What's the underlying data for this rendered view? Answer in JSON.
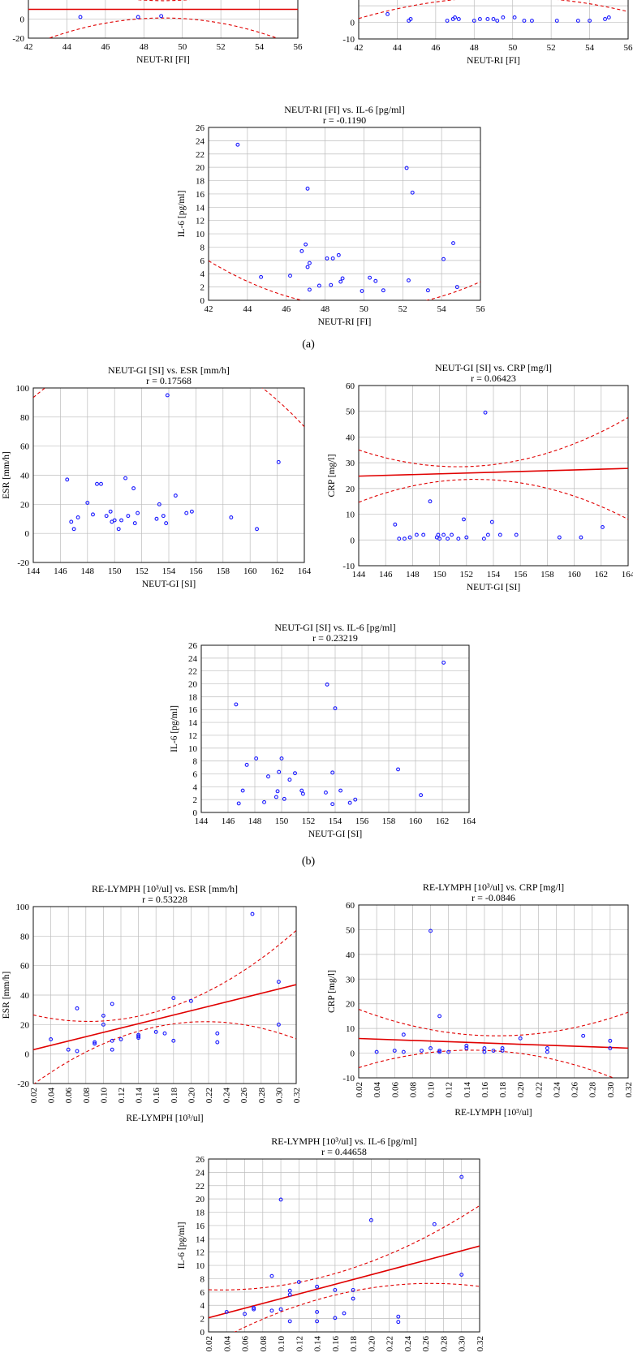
{
  "panel_labels": [
    "(a)",
    "(b)"
  ],
  "chart_data": [
    {
      "id": "a1",
      "type": "scatter",
      "title": "",
      "r_label": "",
      "xlabel": "NEUT-RI [FI]",
      "ylabel": "",
      "xlim": [
        42,
        56
      ],
      "ylim": [
        -20,
        100
      ],
      "xticks": [
        "42",
        "44",
        "46",
        "48",
        "50",
        "52",
        "54",
        "56"
      ],
      "yticks": [
        "-20",
        "0"
      ],
      "points": [
        [
          44.7,
          2
        ],
        [
          47.7,
          2
        ],
        [
          48.9,
          3
        ]
      ],
      "fit": {
        "intercept": 10,
        "slope": 0
      },
      "band": {
        "center": 49,
        "c0": 9,
        "k": 0.6
      }
    },
    {
      "id": "a2",
      "type": "scatter",
      "title": "",
      "r_label": "",
      "xlabel": "NEUT-RI [FI]",
      "ylabel": "",
      "xlim": [
        42,
        56
      ],
      "ylim": [
        -10,
        60
      ],
      "xticks": [
        "42",
        "44",
        "46",
        "48",
        "50",
        "52",
        "54",
        "56"
      ],
      "yticks": [
        "-10",
        "0"
      ],
      "points": [
        [
          43.5,
          5
        ],
        [
          44.6,
          1
        ],
        [
          44.7,
          2
        ],
        [
          46.6,
          1
        ],
        [
          46.9,
          2
        ],
        [
          47.0,
          3
        ],
        [
          47.2,
          2
        ],
        [
          48.0,
          1
        ],
        [
          48.3,
          2
        ],
        [
          48.7,
          2
        ],
        [
          49.0,
          2
        ],
        [
          49.2,
          1
        ],
        [
          49.5,
          3
        ],
        [
          50.1,
          3
        ],
        [
          50.6,
          1
        ],
        [
          51.0,
          1
        ],
        [
          52.3,
          1
        ],
        [
          53.4,
          1
        ],
        [
          54.0,
          1
        ],
        [
          54.8,
          2
        ],
        [
          55.0,
          3
        ]
      ],
      "fit": {
        "intercept": 2,
        "slope": 0.3
      },
      "band": {
        "center": 49,
        "c0": 1.5,
        "k": 0.22
      }
    },
    {
      "id": "a3",
      "type": "scatter",
      "title": "NEUT-RI [FI] vs. IL-6 [pg/ml]",
      "r_label": "r = -0.1190",
      "xlabel": "NEUT-RI [FI]",
      "ylabel": "IL-6 [pg/ml]",
      "xlim": [
        42,
        56
      ],
      "ylim": [
        0,
        26
      ],
      "xticks": [
        "42",
        "44",
        "46",
        "48",
        "50",
        "52",
        "54",
        "56"
      ],
      "yticks": [
        "0",
        "2",
        "4",
        "6",
        "8",
        "10",
        "12",
        "14",
        "16",
        "18",
        "20",
        "22",
        "24",
        "26"
      ],
      "points": [
        [
          43.5,
          23.4
        ],
        [
          44.7,
          3.5
        ],
        [
          46.2,
          3.7
        ],
        [
          46.8,
          7.4
        ],
        [
          47.0,
          8.4
        ],
        [
          47.1,
          16.8
        ],
        [
          47.1,
          5.0
        ],
        [
          47.2,
          5.6
        ],
        [
          47.2,
          1.6
        ],
        [
          47.7,
          2.2
        ],
        [
          48.1,
          6.3
        ],
        [
          48.3,
          2.3
        ],
        [
          48.4,
          6.3
        ],
        [
          48.7,
          6.8
        ],
        [
          48.8,
          2.8
        ],
        [
          48.9,
          3.3
        ],
        [
          49.9,
          1.4
        ],
        [
          50.3,
          3.4
        ],
        [
          50.6,
          2.9
        ],
        [
          51.0,
          1.5
        ],
        [
          52.2,
          19.9
        ],
        [
          52.3,
          3.0
        ],
        [
          52.5,
          16.2
        ],
        [
          53.3,
          1.5
        ],
        [
          54.1,
          6.2
        ],
        [
          54.6,
          8.6
        ],
        [
          54.8,
          2.0
        ]
      ],
      "fit": {
        "intercept": 7.8,
        "slope": -0.225
      },
      "band": {
        "center": 49,
        "c0": 2.2,
        "k": 0.11
      }
    },
    {
      "id": "b1",
      "type": "scatter",
      "title": "NEUT-GI [SI] vs. ESR [mm/h]",
      "r_label": "r = 0.17568",
      "xlabel": "NEUT-GI [SI]",
      "ylabel": "ESR [mm/h]",
      "xlim": [
        144,
        164
      ],
      "ylim": [
        -20,
        100
      ],
      "xticks": [
        "144",
        "146",
        "148",
        "150",
        "152",
        "154",
        "156",
        "158",
        "160",
        "162",
        "164"
      ],
      "yticks": [
        "-20",
        "0",
        "20",
        "40",
        "60",
        "80",
        "100"
      ],
      "points": [
        [
          146.5,
          37
        ],
        [
          146.8,
          8
        ],
        [
          147.0,
          3
        ],
        [
          147.3,
          11
        ],
        [
          148.0,
          21
        ],
        [
          148.4,
          13
        ],
        [
          148.7,
          34
        ],
        [
          149.0,
          34
        ],
        [
          149.4,
          12
        ],
        [
          149.7,
          15
        ],
        [
          149.8,
          8
        ],
        [
          150.0,
          9
        ],
        [
          150.3,
          3
        ],
        [
          150.5,
          9
        ],
        [
          150.8,
          38
        ],
        [
          151.0,
          12
        ],
        [
          151.4,
          31
        ],
        [
          151.5,
          7
        ],
        [
          151.7,
          14
        ],
        [
          153.1,
          10
        ],
        [
          153.3,
          20
        ],
        [
          153.6,
          12
        ],
        [
          153.8,
          7
        ],
        [
          153.9,
          95
        ],
        [
          154.5,
          26
        ],
        [
          155.3,
          14
        ],
        [
          155.7,
          15
        ],
        [
          158.6,
          11
        ],
        [
          160.5,
          3
        ],
        [
          162.1,
          49
        ]
      ],
      "fit": {
        "intercept": 13,
        "slope": 0.8
      },
      "band": {
        "center": 152,
        "c0": 6,
        "k": 0.45
      }
    },
    {
      "id": "b2",
      "type": "scatter",
      "title": "NEUT-GI [SI] vs. CRP [mg/l]",
      "r_label": "r = 0.06423",
      "xlabel": "NEUT-GI [SI]",
      "ylabel": "CRP [mg/l]",
      "xlim": [
        144,
        164
      ],
      "ylim": [
        -10,
        60
      ],
      "xticks": [
        "144",
        "146",
        "148",
        "150",
        "152",
        "154",
        "156",
        "158",
        "160",
        "162",
        "164"
      ],
      "yticks": [
        "-10",
        "0",
        "10",
        "20",
        "30",
        "40",
        "50",
        "60"
      ],
      "points": [
        [
          146.7,
          6
        ],
        [
          147.0,
          0.5
        ],
        [
          147.4,
          0.5
        ],
        [
          147.8,
          1
        ],
        [
          148.3,
          2
        ],
        [
          148.8,
          2
        ],
        [
          149.3,
          15
        ],
        [
          149.8,
          1
        ],
        [
          149.9,
          2
        ],
        [
          150.0,
          0.5
        ],
        [
          150.3,
          2
        ],
        [
          150.6,
          0.5
        ],
        [
          150.9,
          2
        ],
        [
          151.4,
          0.5
        ],
        [
          151.8,
          8
        ],
        [
          152.0,
          1
        ],
        [
          153.3,
          0.5
        ],
        [
          153.4,
          49.5
        ],
        [
          153.6,
          2
        ],
        [
          153.9,
          7
        ],
        [
          154.5,
          2
        ],
        [
          155.7,
          2
        ],
        [
          158.9,
          1
        ],
        [
          160.5,
          1
        ],
        [
          162.1,
          5
        ]
      ],
      "fit": {
        "intercept": 3.2,
        "slope": 0.15
      },
      "band": {
        "center": 152,
        "c0": 2.5,
        "k": 0.12
      }
    },
    {
      "id": "b3",
      "type": "scatter",
      "title": "NEUT-GI [SI] vs. IL-6 [pg/ml]",
      "r_label": "r = 0.23219",
      "xlabel": "NEUT-GI [SI]",
      "ylabel": "IL-6 [pg/ml]",
      "xlim": [
        144,
        164
      ],
      "ylim": [
        0,
        26
      ],
      "xticks": [
        "144",
        "146",
        "148",
        "150",
        "152",
        "154",
        "156",
        "158",
        "160",
        "162",
        "164"
      ],
      "yticks": [
        "0",
        "2",
        "4",
        "6",
        "8",
        "10",
        "12",
        "14",
        "16",
        "18",
        "20",
        "22",
        "24",
        "26"
      ],
      "points": [
        [
          146.6,
          16.8
        ],
        [
          146.8,
          1.4
        ],
        [
          147.1,
          3.4
        ],
        [
          147.4,
          7.4
        ],
        [
          148.1,
          8.4
        ],
        [
          148.7,
          1.6
        ],
        [
          149.0,
          5.6
        ],
        [
          149.6,
          2.4
        ],
        [
          149.7,
          3.3
        ],
        [
          149.8,
          6.3
        ],
        [
          150.0,
          8.4
        ],
        [
          150.2,
          2.1
        ],
        [
          150.6,
          5.1
        ],
        [
          151.0,
          6.1
        ],
        [
          151.5,
          3.4
        ],
        [
          151.6,
          2.9
        ],
        [
          153.3,
          3.1
        ],
        [
          153.4,
          19.9
        ],
        [
          153.8,
          6.2
        ],
        [
          153.8,
          1.3
        ],
        [
          154.0,
          16.2
        ],
        [
          154.4,
          3.4
        ],
        [
          155.1,
          1.5
        ],
        [
          155.5,
          2.0
        ],
        [
          158.7,
          6.7
        ],
        [
          160.4,
          2.7
        ],
        [
          162.1,
          23.3
        ]
      ],
      "fit": {
        "intercept": 4.3,
        "slope": 0.3
      },
      "band": {
        "center": 152,
        "c0": 2.0,
        "k": 0.1
      }
    },
    {
      "id": "c1",
      "type": "scatter",
      "title": "RE-LYMPH [10³/ul] vs. ESR [mm/h]",
      "r_label": "r = 0.53228",
      "xlabel": "RE-LYMPH [10³/ul]",
      "ylabel": "ESR [mm/h]",
      "xlim": [
        0.02,
        0.32
      ],
      "ylim": [
        -20,
        100
      ],
      "xticks": [
        "0.02",
        "0.04",
        "0.06",
        "0.08",
        "0.10",
        "0.12",
        "0.14",
        "0.16",
        "0.18",
        "0.20",
        "0.22",
        "0.24",
        "0.26",
        "0.28",
        "0.30",
        "0.32"
      ],
      "yticks": [
        "-20",
        "0",
        "20",
        "40",
        "60",
        "80",
        "100"
      ],
      "points": [
        [
          0.04,
          10
        ],
        [
          0.06,
          3
        ],
        [
          0.07,
          31
        ],
        [
          0.07,
          2
        ],
        [
          0.09,
          8
        ],
        [
          0.09,
          7
        ],
        [
          0.1,
          26
        ],
        [
          0.1,
          20
        ],
        [
          0.11,
          34
        ],
        [
          0.11,
          9
        ],
        [
          0.11,
          3
        ],
        [
          0.12,
          10
        ],
        [
          0.14,
          13
        ],
        [
          0.14,
          12
        ],
        [
          0.14,
          11
        ],
        [
          0.16,
          15
        ],
        [
          0.17,
          14
        ],
        [
          0.18,
          38
        ],
        [
          0.18,
          9
        ],
        [
          0.2,
          36
        ],
        [
          0.23,
          14
        ],
        [
          0.23,
          8
        ],
        [
          0.27,
          95
        ],
        [
          0.3,
          49
        ],
        [
          0.3,
          20
        ]
      ],
      "fit": {
        "intercept": 0,
        "slope": 147
      },
      "band": {
        "center": 0.15,
        "c0": 5,
        "k": 1100
      }
    },
    {
      "id": "c2",
      "type": "scatter",
      "title": "RE-LYMPH [10³/ul] vs. CRP [mg/l]",
      "r_label": "r = -0.0846",
      "xlabel": "RE-LYMPH [10³/ul]",
      "ylabel": "CRP [mg/l]",
      "xlim": [
        0.02,
        0.32
      ],
      "ylim": [
        -10,
        60
      ],
      "xticks": [
        "0.02",
        "0.04",
        "0.06",
        "0.08",
        "0.10",
        "0.12",
        "0.14",
        "0.16",
        "0.18",
        "0.20",
        "0.22",
        "0.24",
        "0.26",
        "0.28",
        "0.30",
        "0.32"
      ],
      "yticks": [
        "-10",
        "0",
        "10",
        "20",
        "30",
        "40",
        "50",
        "60"
      ],
      "points": [
        [
          0.04,
          0.5
        ],
        [
          0.06,
          1
        ],
        [
          0.07,
          7.5
        ],
        [
          0.07,
          0.5
        ],
        [
          0.09,
          1
        ],
        [
          0.1,
          49.5
        ],
        [
          0.1,
          2
        ],
        [
          0.11,
          15
        ],
        [
          0.11,
          1
        ],
        [
          0.11,
          0.5
        ],
        [
          0.12,
          0.5
        ],
        [
          0.14,
          2
        ],
        [
          0.14,
          3
        ],
        [
          0.16,
          2
        ],
        [
          0.16,
          0.5
        ],
        [
          0.17,
          1
        ],
        [
          0.18,
          2
        ],
        [
          0.18,
          1
        ],
        [
          0.2,
          6
        ],
        [
          0.23,
          2
        ],
        [
          0.23,
          0.5
        ],
        [
          0.27,
          7
        ],
        [
          0.3,
          5
        ],
        [
          0.3,
          2
        ]
      ],
      "fit": {
        "intercept": 6.2,
        "slope": -13
      },
      "band": {
        "center": 0.16,
        "c0": 3,
        "k": 450
      }
    },
    {
      "id": "c3",
      "type": "scatter",
      "title": "RE-LYMPH [10³/ul] vs. IL-6 [pg/ml]",
      "r_label": "r = 0.44658",
      "xlabel": "",
      "ylabel": "IL-6 [pg/ml]",
      "xlim": [
        0.02,
        0.32
      ],
      "ylim": [
        0,
        26
      ],
      "xticks": [
        "0.02",
        "0.04",
        "0.06",
        "0.08",
        "0.10",
        "0.12",
        "0.14",
        "0.16",
        "0.18",
        "0.20",
        "0.22",
        "0.24",
        "0.26",
        "0.28",
        "0.30",
        "0.32"
      ],
      "yticks": [
        "0",
        "2",
        "4",
        "6",
        "8",
        "10",
        "12",
        "14",
        "16",
        "18",
        "20",
        "22",
        "24",
        "26"
      ],
      "points": [
        [
          0.04,
          3.0
        ],
        [
          0.06,
          2.7
        ],
        [
          0.07,
          3.4
        ],
        [
          0.07,
          3.6
        ],
        [
          0.09,
          8.4
        ],
        [
          0.09,
          3.2
        ],
        [
          0.1,
          19.9
        ],
        [
          0.1,
          3.4
        ],
        [
          0.11,
          6.2
        ],
        [
          0.11,
          5.6
        ],
        [
          0.11,
          1.6
        ],
        [
          0.12,
          7.5
        ],
        [
          0.14,
          6.8
        ],
        [
          0.14,
          3.0
        ],
        [
          0.14,
          1.6
        ],
        [
          0.16,
          6.3
        ],
        [
          0.16,
          2.1
        ],
        [
          0.17,
          2.8
        ],
        [
          0.18,
          5.0
        ],
        [
          0.18,
          6.3
        ],
        [
          0.2,
          16.8
        ],
        [
          0.23,
          2.3
        ],
        [
          0.23,
          1.5
        ],
        [
          0.27,
          16.2
        ],
        [
          0.3,
          23.3
        ],
        [
          0.3,
          8.6
        ]
      ],
      "fit": {
        "intercept": 1.4,
        "slope": 36
      },
      "band": {
        "center": 0.15,
        "c0": 1.6,
        "k": 155
      }
    }
  ]
}
